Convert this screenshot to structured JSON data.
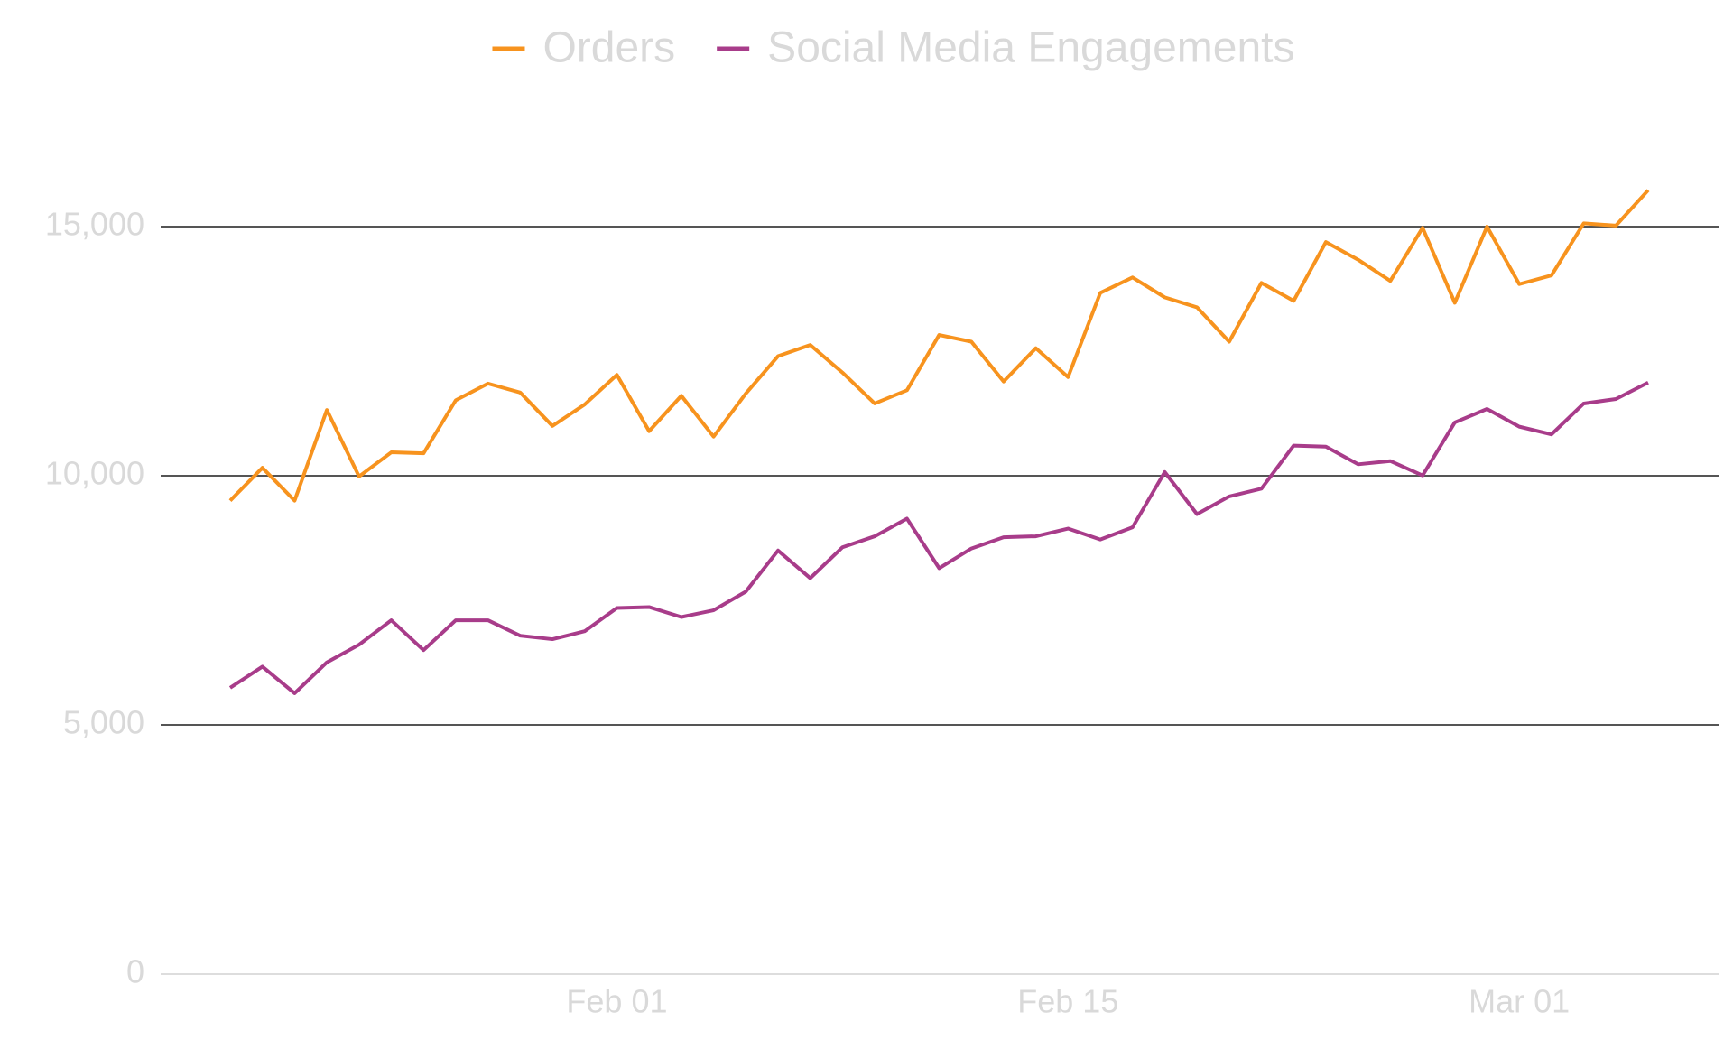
{
  "chart_data": {
    "type": "line",
    "x": [
      "Jan 20",
      "Jan 21",
      "Jan 22",
      "Jan 23",
      "Jan 24",
      "Jan 25",
      "Jan 26",
      "Jan 27",
      "Jan 28",
      "Jan 29",
      "Jan 30",
      "Jan 31",
      "Feb 01",
      "Feb 02",
      "Feb 03",
      "Feb 04",
      "Feb 05",
      "Feb 06",
      "Feb 07",
      "Feb 08",
      "Feb 09",
      "Feb 10",
      "Feb 11",
      "Feb 12",
      "Feb 13",
      "Feb 14",
      "Feb 15",
      "Feb 16",
      "Feb 17",
      "Feb 18",
      "Feb 19",
      "Feb 20",
      "Feb 21",
      "Feb 22",
      "Feb 23",
      "Feb 24",
      "Feb 25",
      "Feb 26",
      "Feb 27",
      "Feb 28",
      "Mar 01",
      "Mar 02",
      "Mar 03",
      "Mar 04",
      "Mar 05"
    ],
    "xticks": [
      "Feb 01",
      "Feb 15",
      "Mar 01"
    ],
    "series": [
      {
        "name": "Orders",
        "color": "#f7931e",
        "values": [
          9500,
          10160,
          9500,
          11320,
          9985,
          10470,
          10450,
          11515,
          11850,
          11670,
          11000,
          11430,
          12025,
          10895,
          11605,
          10785,
          11650,
          12400,
          12625,
          12070,
          11450,
          11715,
          12825,
          12690,
          11890,
          12560,
          11980,
          13670,
          13980,
          13580,
          13380,
          12690,
          13870,
          13510,
          14690,
          14335,
          13910,
          14975,
          13470,
          15000,
          13845,
          14020,
          15065,
          15020,
          15730
        ]
      },
      {
        "name": "Social Media Engagements",
        "color": "#a83c8a",
        "values": [
          5745,
          6170,
          5635,
          6255,
          6610,
          7100,
          6500,
          7100,
          7100,
          6790,
          6720,
          6880,
          7345,
          7365,
          7165,
          7300,
          7675,
          8500,
          7945,
          8565,
          8785,
          9140,
          8145,
          8540,
          8765,
          8785,
          8940,
          8720,
          8965,
          10075,
          9230,
          9585,
          9740,
          10605,
          10585,
          10230,
          10295,
          10005,
          11070,
          11340,
          10985,
          10830,
          11450,
          11540,
          11870
        ]
      }
    ],
    "ylim": [
      0,
      15000
    ],
    "yticks": [
      0,
      {
        "value": 5000,
        "label": "5,000"
      },
      {
        "value": 10000,
        "label": "10,000"
      },
      {
        "value": 15000,
        "label": "15,000"
      }
    ],
    "grid": true,
    "legend": "top"
  }
}
